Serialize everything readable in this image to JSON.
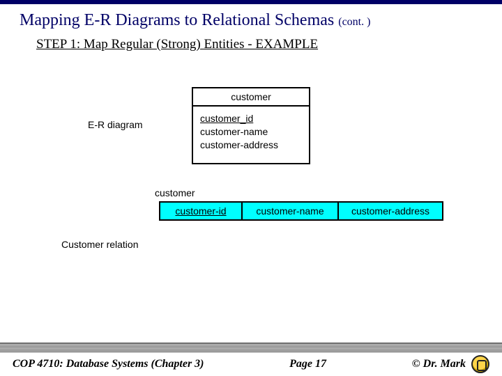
{
  "title": {
    "main": "Mapping E-R Diagrams to Relational Schemas",
    "cont": "(cont. )"
  },
  "step_heading": "STEP 1:  Map Regular (Strong) Entities - EXAMPLE",
  "er_label": "E-R diagram",
  "entity": {
    "name": "customer",
    "pk": "customer_id",
    "attr2": "customer-name",
    "attr3": "customer-address"
  },
  "relation_label_top": "customer",
  "relation": {
    "c1": "customer-id",
    "c2": "customer-name",
    "c3": "customer-address",
    "cell_bg": "#00ffff"
  },
  "customer_relation_label": "Customer relation",
  "footer": {
    "left": "COP 4710: Database Systems  (Chapter 3)",
    "center": "Page 17",
    "right": "© Dr. Mark"
  },
  "colors": {
    "accent": "#000066",
    "background": "#ffffff"
  }
}
